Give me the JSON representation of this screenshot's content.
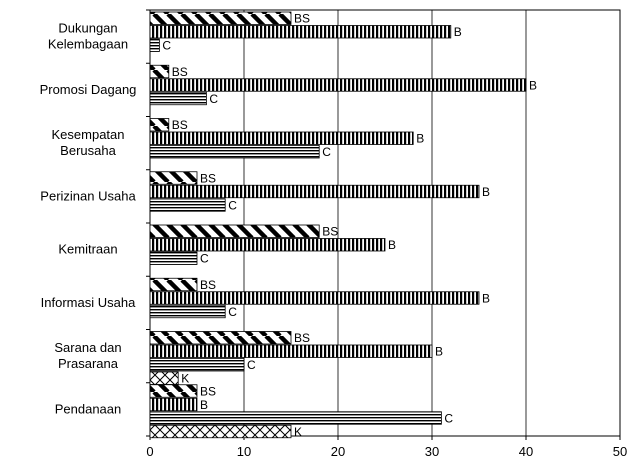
{
  "chart_data": {
    "type": "bar",
    "orientation": "horizontal",
    "categories": [
      [
        "Dukungan",
        "Kelembagaan"
      ],
      [
        "Promosi Dagang"
      ],
      [
        "Kesempatan",
        "Berusaha"
      ],
      [
        "Perizinan Usaha"
      ],
      [
        "Kemitraan"
      ],
      [
        "Informasi Usaha"
      ],
      [
        "Sarana dan",
        "Prasarana"
      ],
      [
        "Pendanaan"
      ]
    ],
    "groups": [
      {
        "bars": [
          {
            "label": "BS",
            "value": 15,
            "pattern": "diag"
          },
          {
            "label": "B",
            "value": 32,
            "pattern": "vert"
          },
          {
            "label": "C",
            "value": 1,
            "pattern": "horiz"
          }
        ]
      },
      {
        "bars": [
          {
            "label": "BS",
            "value": 2,
            "pattern": "diag"
          },
          {
            "label": "B",
            "value": 40,
            "pattern": "vert"
          },
          {
            "label": "C",
            "value": 6,
            "pattern": "horiz"
          }
        ]
      },
      {
        "bars": [
          {
            "label": "BS",
            "value": 2,
            "pattern": "diag"
          },
          {
            "label": "B",
            "value": 28,
            "pattern": "vert"
          },
          {
            "label": "C",
            "value": 18,
            "pattern": "horiz"
          }
        ]
      },
      {
        "bars": [
          {
            "label": "BS",
            "value": 5,
            "pattern": "diag"
          },
          {
            "label": "B",
            "value": 35,
            "pattern": "vert"
          },
          {
            "label": "C",
            "value": 8,
            "pattern": "horiz"
          }
        ]
      },
      {
        "bars": [
          {
            "label": "BS",
            "value": 18,
            "pattern": "diag"
          },
          {
            "label": "B",
            "value": 25,
            "pattern": "vert"
          },
          {
            "label": "C",
            "value": 5,
            "pattern": "horiz"
          }
        ]
      },
      {
        "bars": [
          {
            "label": "BS",
            "value": 5,
            "pattern": "diag"
          },
          {
            "label": "B",
            "value": 35,
            "pattern": "vert"
          },
          {
            "label": "C",
            "value": 8,
            "pattern": "horiz"
          }
        ]
      },
      {
        "bars": [
          {
            "label": "BS",
            "value": 15,
            "pattern": "diag"
          },
          {
            "label": "B",
            "value": 30,
            "pattern": "vert"
          },
          {
            "label": "C",
            "value": 10,
            "pattern": "horiz"
          },
          {
            "label": "K",
            "value": 3,
            "pattern": "cross"
          }
        ]
      },
      {
        "bars": [
          {
            "label": "BS",
            "value": 5,
            "pattern": "diag"
          },
          {
            "label": "B",
            "value": 5,
            "pattern": "vert"
          },
          {
            "label": "C",
            "value": 31,
            "pattern": "horiz"
          },
          {
            "label": "K",
            "value": 15,
            "pattern": "cross"
          }
        ]
      }
    ],
    "xlim": [
      0,
      50
    ],
    "xticks": [
      "0",
      "10",
      "20",
      "30",
      "40",
      "50"
    ],
    "grid": "vertical",
    "title": "",
    "xlabel": "",
    "ylabel": ""
  }
}
